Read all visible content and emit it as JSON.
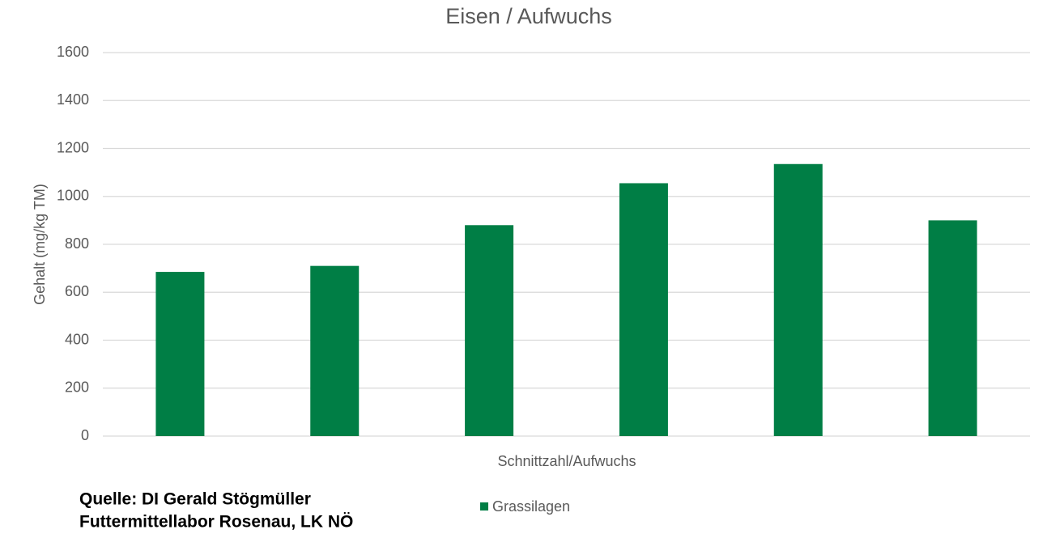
{
  "chart_data": {
    "type": "bar",
    "title": "Eisen / Aufwuchs",
    "x_label": "Schnittzahl/Aufwuchs",
    "y_label": "Gehalt (mg/kg TM)",
    "categories": [
      null,
      null,
      null,
      null,
      null,
      null
    ],
    "series": [
      {
        "name": "Grassilagen",
        "color": "#007e45",
        "values": [
          685,
          710,
          880,
          1055,
          1135,
          900
        ]
      }
    ],
    "ylim": [
      0,
      1600
    ],
    "yticks": [
      0,
      200,
      400,
      600,
      800,
      1000,
      1200,
      1400,
      1600
    ],
    "grid": true,
    "legend": "bottom",
    "source": [
      "Quelle: DI Gerald Stögmüller",
      "Futtermittellabor Rosenau, LK NÖ"
    ]
  }
}
